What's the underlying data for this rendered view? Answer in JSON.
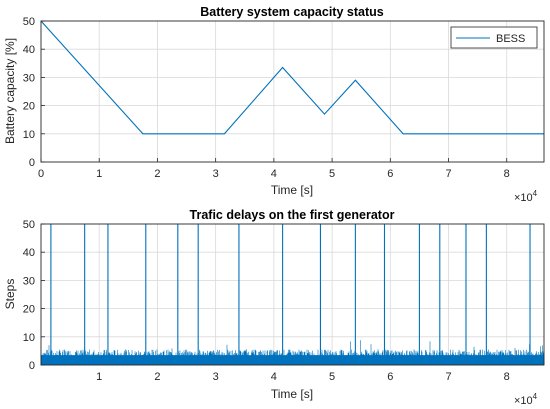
{
  "chart_data": [
    {
      "type": "line",
      "title": "Battery system capacity status",
      "xlabel": "Time [s]",
      "ylabel": "Battery capacity [%]",
      "x_exponent_label": "×10",
      "x_exponent_power": "4",
      "xlim": [
        0,
        8.64
      ],
      "ylim": [
        0,
        50
      ],
      "xticks": [
        0,
        1,
        2,
        3,
        4,
        5,
        6,
        7,
        8
      ],
      "yticks": [
        0,
        10,
        20,
        30,
        40,
        50
      ],
      "grid": true,
      "legend": {
        "position": "top-right",
        "entries": [
          "BESS"
        ]
      },
      "series": [
        {
          "name": "BESS",
          "color": "#0072bd",
          "x": [
            0,
            1.75,
            3.15,
            4.15,
            4.87,
            5.4,
            6.22,
            8.64
          ],
          "y": [
            50,
            10,
            10,
            33.5,
            17,
            29,
            10,
            10
          ]
        }
      ]
    },
    {
      "type": "line",
      "title": "Trafic delays on the first generator",
      "xlabel": "Time [s]",
      "ylabel": "Steps",
      "x_exponent_label": "×10",
      "x_exponent_power": "4",
      "xlim": [
        0,
        8.64
      ],
      "ylim": [
        0,
        50
      ],
      "xticks": [
        1,
        2,
        3,
        4,
        5,
        6,
        7,
        8
      ],
      "yticks": [
        0,
        10,
        20,
        30,
        40,
        50
      ],
      "grid": true,
      "noise_band": {
        "min": 0,
        "max": 5.5,
        "peak": 9
      },
      "spikes_x": [
        0.17,
        0.75,
        1.15,
        1.8,
        2.35,
        2.7,
        3.4,
        4.15,
        4.8,
        5.4,
        5.9,
        6.5,
        6.85,
        7.3,
        7.65,
        8.4
      ],
      "spike_height": 50,
      "series": [
        {
          "color": "#0072bd"
        }
      ]
    }
  ]
}
